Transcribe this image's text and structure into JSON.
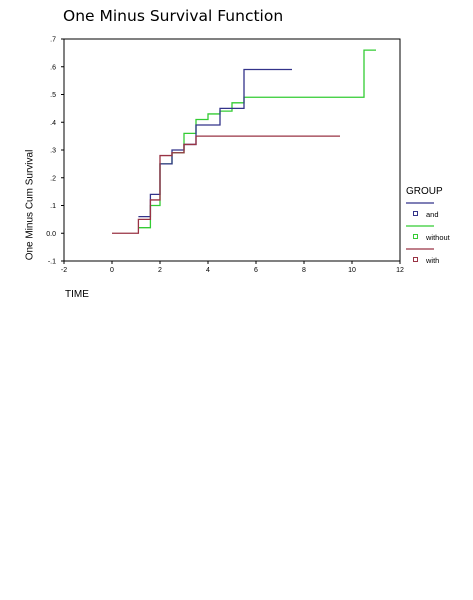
{
  "chart_data": {
    "type": "line",
    "title": "One Minus Survival Function",
    "xlabel": "TIME",
    "ylabel": "One Minus Cum Survival",
    "xlim": [
      -2,
      12
    ],
    "ylim": [
      -0.1,
      0.7
    ],
    "x_ticks": [
      -2,
      0,
      2,
      4,
      6,
      8,
      10,
      12
    ],
    "x_tick_labels": [
      "-2",
      "0",
      "2",
      "4",
      "6",
      "8",
      "10",
      "12"
    ],
    "y_ticks": [
      -0.1,
      0.0,
      0.1,
      0.2,
      0.3,
      0.4,
      0.5,
      0.6,
      0.7
    ],
    "y_tick_labels": [
      "-.1",
      "0.0",
      ".1",
      ".2",
      ".3",
      ".4",
      ".5",
      ".6",
      ".7"
    ],
    "grid": false,
    "legend_title": "GROUP",
    "legend_position": "right",
    "series": [
      {
        "name": "and",
        "color": "#33338a",
        "step_x": [
          1.1,
          1.6,
          2.0,
          2.5,
          3.0,
          3.5,
          4.5,
          5.5,
          7.5
        ],
        "step_y": [
          0.06,
          0.14,
          0.25,
          0.3,
          0.32,
          0.39,
          0.45,
          0.59,
          0.59
        ]
      },
      {
        "name": "without",
        "color": "#33cc33",
        "step_x": [
          1.1,
          1.6,
          2.0,
          2.5,
          3.0,
          3.5,
          4.0,
          4.5,
          5.0,
          5.5,
          10.5,
          11.0
        ],
        "step_y": [
          0.02,
          0.1,
          0.25,
          0.29,
          0.36,
          0.41,
          0.43,
          0.44,
          0.47,
          0.49,
          0.66,
          0.66
        ]
      },
      {
        "name": "with",
        "color": "#993344",
        "start_x": 0,
        "start_y": 0,
        "step_x": [
          1.1,
          1.6,
          2.0,
          2.5,
          3.0,
          3.5,
          9.5
        ],
        "step_y": [
          0.05,
          0.12,
          0.28,
          0.29,
          0.32,
          0.35,
          0.35
        ]
      }
    ]
  }
}
